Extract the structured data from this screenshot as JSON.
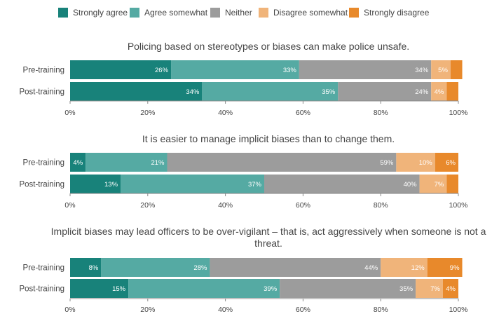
{
  "legend": [
    {
      "name": "Strongly agree",
      "color": "#18827a"
    },
    {
      "name": "Agree somewhat",
      "color": "#55aaa3"
    },
    {
      "name": "Neither",
      "color": "#9c9c9c"
    },
    {
      "name": "Disagree somewhat",
      "color": "#f0b47a"
    },
    {
      "name": "Strongly disagree",
      "color": "#e8892b"
    }
  ],
  "chart_data": [
    {
      "type": "bar",
      "orientation": "horizontal",
      "stacked": true,
      "title": "Policing based on stereotypes or biases can make police unsafe.",
      "categories": [
        "Pre-training",
        "Post-training"
      ],
      "series": [
        {
          "name": "Strongly agree",
          "values": [
            26,
            34
          ]
        },
        {
          "name": "Agree somewhat",
          "values": [
            33,
            35
          ]
        },
        {
          "name": "Neither",
          "values": [
            34,
            24
          ]
        },
        {
          "name": "Disagree somewhat",
          "values": [
            5,
            4
          ]
        },
        {
          "name": "Strongly disagree",
          "values": [
            3,
            3
          ]
        }
      ],
      "labels": [
        [
          "26%",
          "34%"
        ],
        [
          "33%",
          "35%"
        ],
        [
          "34%",
          "24%"
        ],
        [
          "5%",
          "4%"
        ],
        [
          "",
          ""
        ]
      ],
      "xlim": [
        0,
        100
      ],
      "xticks": [
        "0%",
        "20%",
        "40%",
        "60%",
        "80%",
        "100%"
      ]
    },
    {
      "type": "bar",
      "orientation": "horizontal",
      "stacked": true,
      "title": "It is easier to manage implicit biases than to change them.",
      "categories": [
        "Pre-training",
        "Post-training"
      ],
      "series": [
        {
          "name": "Strongly agree",
          "values": [
            4,
            13
          ]
        },
        {
          "name": "Agree somewhat",
          "values": [
            21,
            37
          ]
        },
        {
          "name": "Neither",
          "values": [
            59,
            40
          ]
        },
        {
          "name": "Disagree somewhat",
          "values": [
            10,
            7
          ]
        },
        {
          "name": "Strongly disagree",
          "values": [
            6,
            3
          ]
        }
      ],
      "labels": [
        [
          "4%",
          "13%"
        ],
        [
          "21%",
          "37%"
        ],
        [
          "59%",
          "40%"
        ],
        [
          "10%",
          "7%"
        ],
        [
          "6%",
          ""
        ]
      ],
      "xlim": [
        0,
        100
      ],
      "xticks": [
        "0%",
        "20%",
        "40%",
        "60%",
        "80%",
        "100%"
      ]
    },
    {
      "type": "bar",
      "orientation": "horizontal",
      "stacked": true,
      "title": "Implicit biases may lead officers to be over-vigilant – that is, act aggressively when someone is not a threat.",
      "categories": [
        "Pre-training",
        "Post-training"
      ],
      "series": [
        {
          "name": "Strongly agree",
          "values": [
            8,
            15
          ]
        },
        {
          "name": "Agree somewhat",
          "values": [
            28,
            39
          ]
        },
        {
          "name": "Neither",
          "values": [
            44,
            35
          ]
        },
        {
          "name": "Disagree somewhat",
          "values": [
            12,
            7
          ]
        },
        {
          "name": "Strongly disagree",
          "values": [
            9,
            4
          ]
        }
      ],
      "labels": [
        [
          "8%",
          "15%"
        ],
        [
          "28%",
          "39%"
        ],
        [
          "44%",
          "35%"
        ],
        [
          "12%",
          "7%"
        ],
        [
          "9%",
          "4%"
        ]
      ],
      "xlim": [
        0,
        100
      ],
      "xticks": [
        "0%",
        "20%",
        "40%",
        "60%",
        "80%",
        "100%"
      ]
    }
  ]
}
